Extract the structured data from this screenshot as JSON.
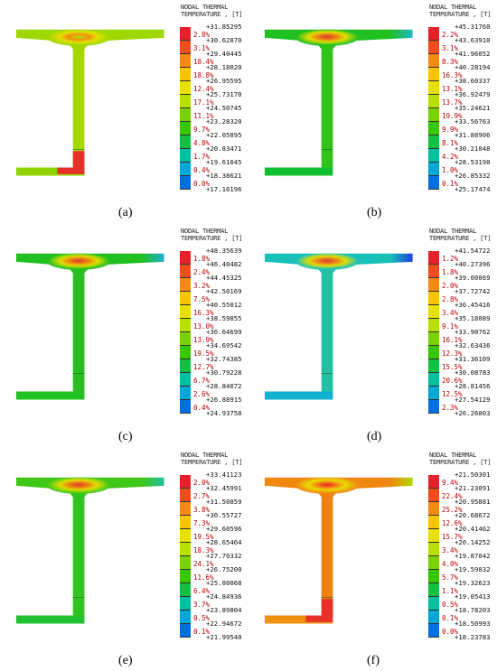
{
  "legend_title": "NODAL THERMAL\nTEMPERATURE , [T]",
  "colors": [
    "#e8202a",
    "#f04c1c",
    "#f58a10",
    "#f7c500",
    "#e7e000",
    "#b7e200",
    "#7ad200",
    "#38c800",
    "#10c040",
    "#00c0a0",
    "#00a8d8",
    "#0070e0",
    "#1838e0",
    "#0010e8"
  ],
  "panels": [
    {
      "caption": "(a)",
      "ticks": [
        "+31.85295",
        "+30.62870",
        "+29.40445",
        "+28.18020",
        "+26.95595",
        "+25.73170",
        "+24.50745",
        "+23.28320",
        "+22.05895",
        "+20.83471",
        "+19.61045",
        "+18.38621",
        "+17.16196"
      ],
      "pct": [
        "2.8%",
        "3.1%",
        "18.4%",
        "18.8%",
        "12.4%",
        "17.1%",
        "11.1%",
        "9.7%",
        "4.8%",
        "1.7%",
        "0.4%",
        "0.0%"
      ]
    },
    {
      "caption": "(b)",
      "ticks": [
        "+45.31760",
        "+43.63910",
        "+41.96052",
        "+40.28194",
        "+38.60337",
        "+36.92479",
        "+35.24621",
        "+33.56763",
        "+31.88906",
        "+30.21048",
        "+28.53190",
        "+26.85332",
        "+25.17474"
      ],
      "pct": [
        "2.2%",
        "3.1%",
        "8.3%",
        "16.3%",
        "13.1%",
        "13.7%",
        "19.9%",
        "9.9%",
        "8.1%",
        "4.2%",
        "1.0%",
        "0.1%"
      ]
    },
    {
      "caption": "(c)",
      "ticks": [
        "+48.35639",
        "+46.40482",
        "+44.45325",
        "+42.50169",
        "+40.55012",
        "+38.59855",
        "+36.64699",
        "+34.69542",
        "+32.74385",
        "+30.79228",
        "+28.84072",
        "+26.88915",
        "+24.93758"
      ],
      "pct": [
        "1.8%",
        "2.4%",
        "3.2%",
        "7.5%",
        "16.3%",
        "13.0%",
        "13.9%",
        "19.5%",
        "12.7%",
        "6.7%",
        "2.6%",
        "0.4%"
      ]
    },
    {
      "caption": "(d)",
      "ticks": [
        "+41.54722",
        "+40.27396",
        "+39.00069",
        "+37.72742",
        "+36.45416",
        "+35.18089",
        "+33.90762",
        "+32.63436",
        "+31.36109",
        "+30.08783",
        "+28.81456",
        "+27.54129",
        "+26.26803"
      ],
      "pct": [
        "1.2%",
        "1.8%",
        "2.0%",
        "2.8%",
        "3.4%",
        "9.1%",
        "16.1%",
        "12.3%",
        "15.5%",
        "20.6%",
        "12.5%",
        "2.3%"
      ]
    },
    {
      "caption": "(e)",
      "ticks": [
        "+33.41123",
        "+32.45991",
        "+31.50859",
        "+30.55727",
        "+29.60596",
        "+28.65464",
        "+27.70332",
        "+26.75200",
        "+25.80068",
        "+24.84936",
        "+23.89804",
        "+22.94672",
        "+21.99540"
      ],
      "pct": [
        "2.0%",
        "2.7%",
        "3.8%",
        "7.3%",
        "19.5%",
        "18.3%",
        "24.1%",
        "11.6%",
        "6.4%",
        "3.7%",
        "0.5%",
        "0.1%"
      ]
    },
    {
      "caption": "(f)",
      "ticks": [
        "+21.50301",
        "+21.23091",
        "+20.95881",
        "+20.68672",
        "+20.41462",
        "+20.14252",
        "+19.87042",
        "+19.59832",
        "+19.32623",
        "+19.05413",
        "+18.78203",
        "+18.50993",
        "+18.23783"
      ],
      "pct": [
        "9.4%",
        "22.4%",
        "25.2%",
        "12.6%",
        "15.7%",
        "3.4%",
        "4.0%",
        "5.7%",
        "1.1%",
        "0.5%",
        "0.1%",
        "0.0%"
      ]
    }
  ]
}
